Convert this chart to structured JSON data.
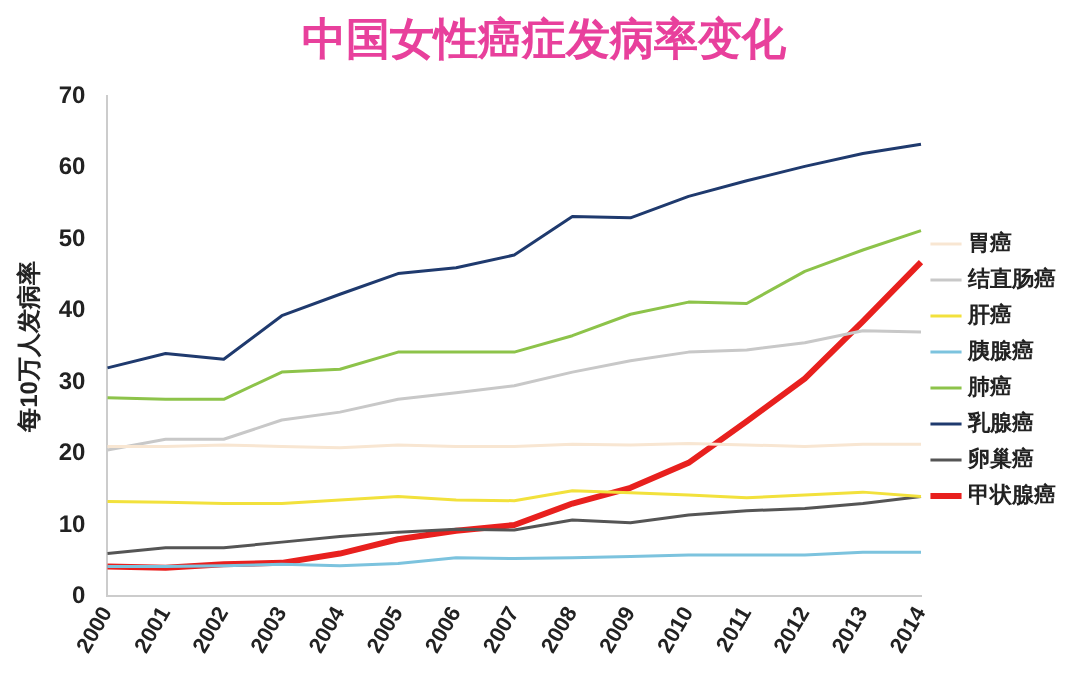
{
  "chart_data": {
    "type": "line",
    "title": "中国女性癌症发病率变化",
    "ylabel": "每10万人发病率",
    "categories": [
      "2000",
      "2001",
      "2002",
      "2003",
      "2004",
      "2005",
      "2006",
      "2007",
      "2008",
      "2009",
      "2010",
      "2011",
      "2012",
      "2013",
      "2014"
    ],
    "ylim": [
      0,
      70
    ],
    "yticks": [
      0,
      10,
      20,
      30,
      40,
      50,
      60,
      70
    ],
    "grid": false,
    "legend": "right",
    "marker": "none",
    "line_style": "solid",
    "series": [
      {
        "name": "胃癌",
        "color": "#f8e6d2",
        "values": [
          21,
          21,
          21.2,
          21,
          20.8,
          21.2,
          21,
          21,
          21.3,
          21.2,
          21.4,
          21.2,
          21,
          21.3,
          21.3
        ]
      },
      {
        "name": "结直肠癌",
        "color": "#c8c8c8",
        "values": [
          20.5,
          22,
          22,
          24.7,
          25.8,
          27.6,
          28.5,
          29.5,
          31.4,
          33,
          34.2,
          34.5,
          35.5,
          37.2,
          37
        ]
      },
      {
        "name": "肝癌",
        "color": "#f2e13c",
        "values": [
          13.3,
          13.2,
          13,
          13,
          13.5,
          14,
          13.5,
          13.4,
          14.8,
          14.5,
          14.2,
          13.8,
          14.2,
          14.6,
          14
        ]
      },
      {
        "name": "胰腺癌",
        "color": "#7cc3de",
        "values": [
          4.2,
          4.2,
          4.3,
          4.5,
          4.3,
          4.6,
          5.4,
          5.3,
          5.4,
          5.6,
          5.8,
          5.8,
          5.8,
          6.2,
          6.2
        ]
      },
      {
        "name": "肺癌",
        "color": "#8dc34a",
        "values": [
          27.8,
          27.6,
          27.6,
          31.4,
          31.8,
          34.2,
          34.2,
          34.2,
          36.5,
          39.5,
          41.2,
          41,
          45.5,
          48.5,
          51.2
        ]
      },
      {
        "name": "乳腺癌",
        "color": "#1f3a6e",
        "values": [
          32,
          34,
          33.2,
          39.3,
          42.3,
          45.2,
          46,
          47.8,
          53.2,
          53,
          56,
          58.2,
          60.2,
          62,
          63.3
        ]
      },
      {
        "name": "卵巢癌",
        "color": "#555555",
        "values": [
          6,
          6.8,
          6.8,
          7.6,
          8.4,
          9,
          9.4,
          9.3,
          10.7,
          10.3,
          11.4,
          12,
          12.3,
          13,
          14
        ]
      },
      {
        "name": "甲状腺癌",
        "color": "#e8201e",
        "values": [
          4.2,
          4,
          4.5,
          4.7,
          6,
          8,
          9.2,
          10,
          13,
          15.2,
          18.7,
          24.5,
          30.5,
          38.5,
          46.8
        ]
      }
    ]
  }
}
